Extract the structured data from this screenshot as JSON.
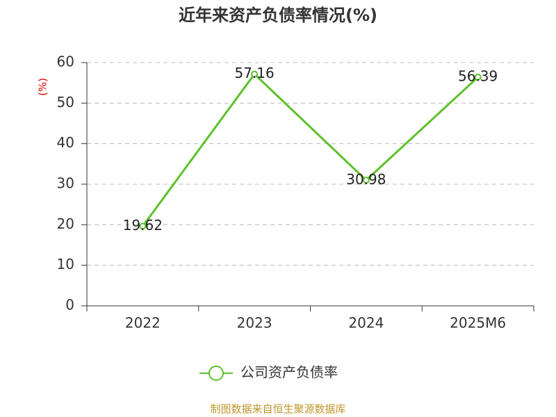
{
  "chart_data": {
    "type": "line",
    "title": "近年来资产负债率情况(%)",
    "y_label": "(%)",
    "categories": [
      "2022",
      "2023",
      "2024",
      "2025M6"
    ],
    "series": [
      {
        "name": "公司资产负债率",
        "color": "#5cc12a",
        "values": [
          19.62,
          57.16,
          30.98,
          56.39
        ]
      }
    ],
    "ylim": [
      0,
      60
    ],
    "yticks": [
      0,
      10,
      20,
      30,
      40,
      50,
      60
    ],
    "grid": true,
    "source": "制图数据来自恒生聚源数据库"
  }
}
